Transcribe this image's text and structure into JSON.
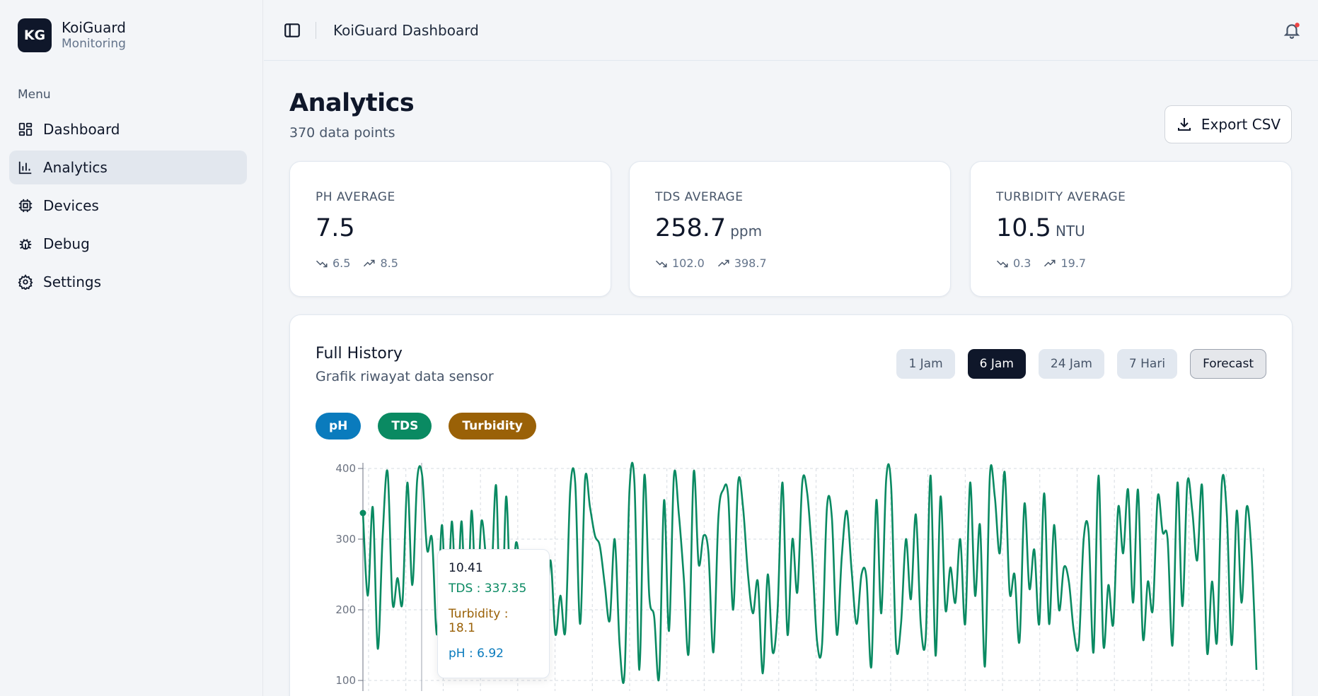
{
  "brand": {
    "logo": "KG",
    "name": "KoiGuard",
    "subtitle": "Monitoring"
  },
  "sidebar": {
    "menu_label": "Menu",
    "items": [
      {
        "label": "Dashboard",
        "icon": "dashboard-icon",
        "active": false
      },
      {
        "label": "Analytics",
        "icon": "bar-chart-icon",
        "active": true
      },
      {
        "label": "Devices",
        "icon": "chip-icon",
        "active": false
      },
      {
        "label": "Debug",
        "icon": "bug-icon",
        "active": false
      },
      {
        "label": "Settings",
        "icon": "gear-icon",
        "active": false
      }
    ]
  },
  "header": {
    "title": "KoiGuard Dashboard",
    "notification_dot": true
  },
  "page": {
    "title": "Analytics",
    "subtitle": "370 data points",
    "export_label": "Export CSV"
  },
  "stats": [
    {
      "label": "PH AVERAGE",
      "value": "7.5",
      "unit": "",
      "min": "6.5",
      "max": "8.5"
    },
    {
      "label": "TDS AVERAGE",
      "value": "258.7",
      "unit": "ppm",
      "min": "102.0",
      "max": "398.7"
    },
    {
      "label": "TURBIDITY AVERAGE",
      "value": "10.5",
      "unit": "NTU",
      "min": "0.3",
      "max": "19.7"
    }
  ],
  "history": {
    "title": "Full History",
    "subtitle": "Grafik riwayat data sensor",
    "ranges": [
      "1 Jam",
      "6 Jam",
      "24 Jam",
      "7 Hari"
    ],
    "active_range": "6 Jam",
    "forecast_label": "Forecast",
    "series_toggles": [
      {
        "label": "pH",
        "color": "#0a7bbd"
      },
      {
        "label": "TDS",
        "color": "#0a8a62"
      },
      {
        "label": "Turbidity",
        "color": "#9a6107"
      }
    ],
    "tooltip": {
      "title": "10.41",
      "tds": "TDS : 337.35",
      "turbidity": "Turbidity : 18.1",
      "ph": "pH : 6.92"
    }
  },
  "chart_data": {
    "type": "line",
    "ylim": [
      100,
      400
    ],
    "yticks": [
      "400",
      "300",
      "200",
      "100"
    ],
    "grid": true,
    "series": [
      {
        "name": "TDS",
        "color": "#0a8a62",
        "values": [
          337,
          220,
          345,
          145,
          305,
          395,
          210,
          245,
          210,
          380,
          235,
          385,
          390,
          285,
          300,
          165,
          320,
          170,
          325,
          195,
          325,
          150,
          340,
          200,
          325,
          270,
          245,
          375,
          140,
          360,
          200,
          295,
          240,
          145,
          255,
          200,
          210,
          180,
          270,
          165,
          220,
          170,
          370,
          380,
          180,
          385,
          345,
          305,
          290,
          235,
          185,
          300,
          150,
          110,
          370,
          380,
          115,
          390,
          220,
          190,
          105,
          355,
          170,
          390,
          335,
          245,
          140,
          395,
          265,
          305,
          280,
          140,
          330,
          370,
          360,
          200,
          380,
          345,
          250,
          195,
          240,
          110,
          250,
          140,
          200,
          380,
          165,
          300,
          225,
          380,
          365,
          275,
          155,
          150,
          345,
          330,
          165,
          275,
          340,
          255,
          180,
          250,
          245,
          120,
          355,
          195,
          385,
          375,
          150,
          180,
          300,
          215,
          335,
          180,
          160,
          390,
          135,
          360,
          200,
          260,
          210,
          300,
          180,
          380,
          220,
          320,
          120,
          390,
          360,
          280,
          395,
          225,
          250,
          155,
          350,
          230,
          285,
          180,
          365,
          180,
          320,
          200,
          260,
          240,
          170,
          150,
          300,
          310,
          140,
          390,
          150,
          235,
          180,
          345,
          280,
          370,
          210,
          370,
          160,
          240,
          200,
          360,
          310,
          300,
          150,
          380,
          205,
          380,
          340,
          270,
          375,
          140,
          240,
          155,
          380,
          335,
          150,
          340,
          210,
          345,
          280,
          115
        ]
      }
    ]
  }
}
